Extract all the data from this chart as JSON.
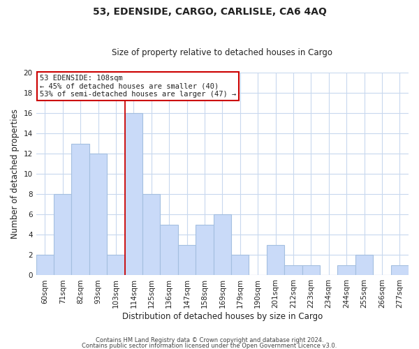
{
  "title": "53, EDENSIDE, CARGO, CARLISLE, CA6 4AQ",
  "subtitle": "Size of property relative to detached houses in Cargo",
  "xlabel": "Distribution of detached houses by size in Cargo",
  "ylabel": "Number of detached properties",
  "bar_labels": [
    "60sqm",
    "71sqm",
    "82sqm",
    "93sqm",
    "103sqm",
    "114sqm",
    "125sqm",
    "136sqm",
    "147sqm",
    "158sqm",
    "169sqm",
    "179sqm",
    "190sqm",
    "201sqm",
    "212sqm",
    "223sqm",
    "234sqm",
    "244sqm",
    "255sqm",
    "266sqm",
    "277sqm"
  ],
  "bar_values": [
    2,
    8,
    13,
    12,
    2,
    16,
    8,
    5,
    3,
    5,
    6,
    2,
    0,
    3,
    1,
    1,
    0,
    1,
    2,
    0,
    1
  ],
  "bar_color": "#c9daf8",
  "bar_edge_color": "#a4bfe0",
  "reference_line_color": "#cc0000",
  "annotation_title": "53 EDENSIDE: 108sqm",
  "annotation_line1": "← 45% of detached houses are smaller (40)",
  "annotation_line2": "53% of semi-detached houses are larger (47) →",
  "annotation_box_color": "#ffffff",
  "annotation_box_edge_color": "#cc0000",
  "ylim": [
    0,
    20
  ],
  "yticks": [
    0,
    2,
    4,
    6,
    8,
    10,
    12,
    14,
    16,
    18,
    20
  ],
  "footer1": "Contains HM Land Registry data © Crown copyright and database right 2024.",
  "footer2": "Contains public sector information licensed under the Open Government Licence v3.0.",
  "background_color": "#ffffff",
  "grid_color": "#c8d8ee",
  "title_fontsize": 10,
  "subtitle_fontsize": 8.5,
  "axis_label_fontsize": 8.5,
  "tick_fontsize": 7.5,
  "annotation_fontsize": 7.5,
  "footer_fontsize": 6.0
}
